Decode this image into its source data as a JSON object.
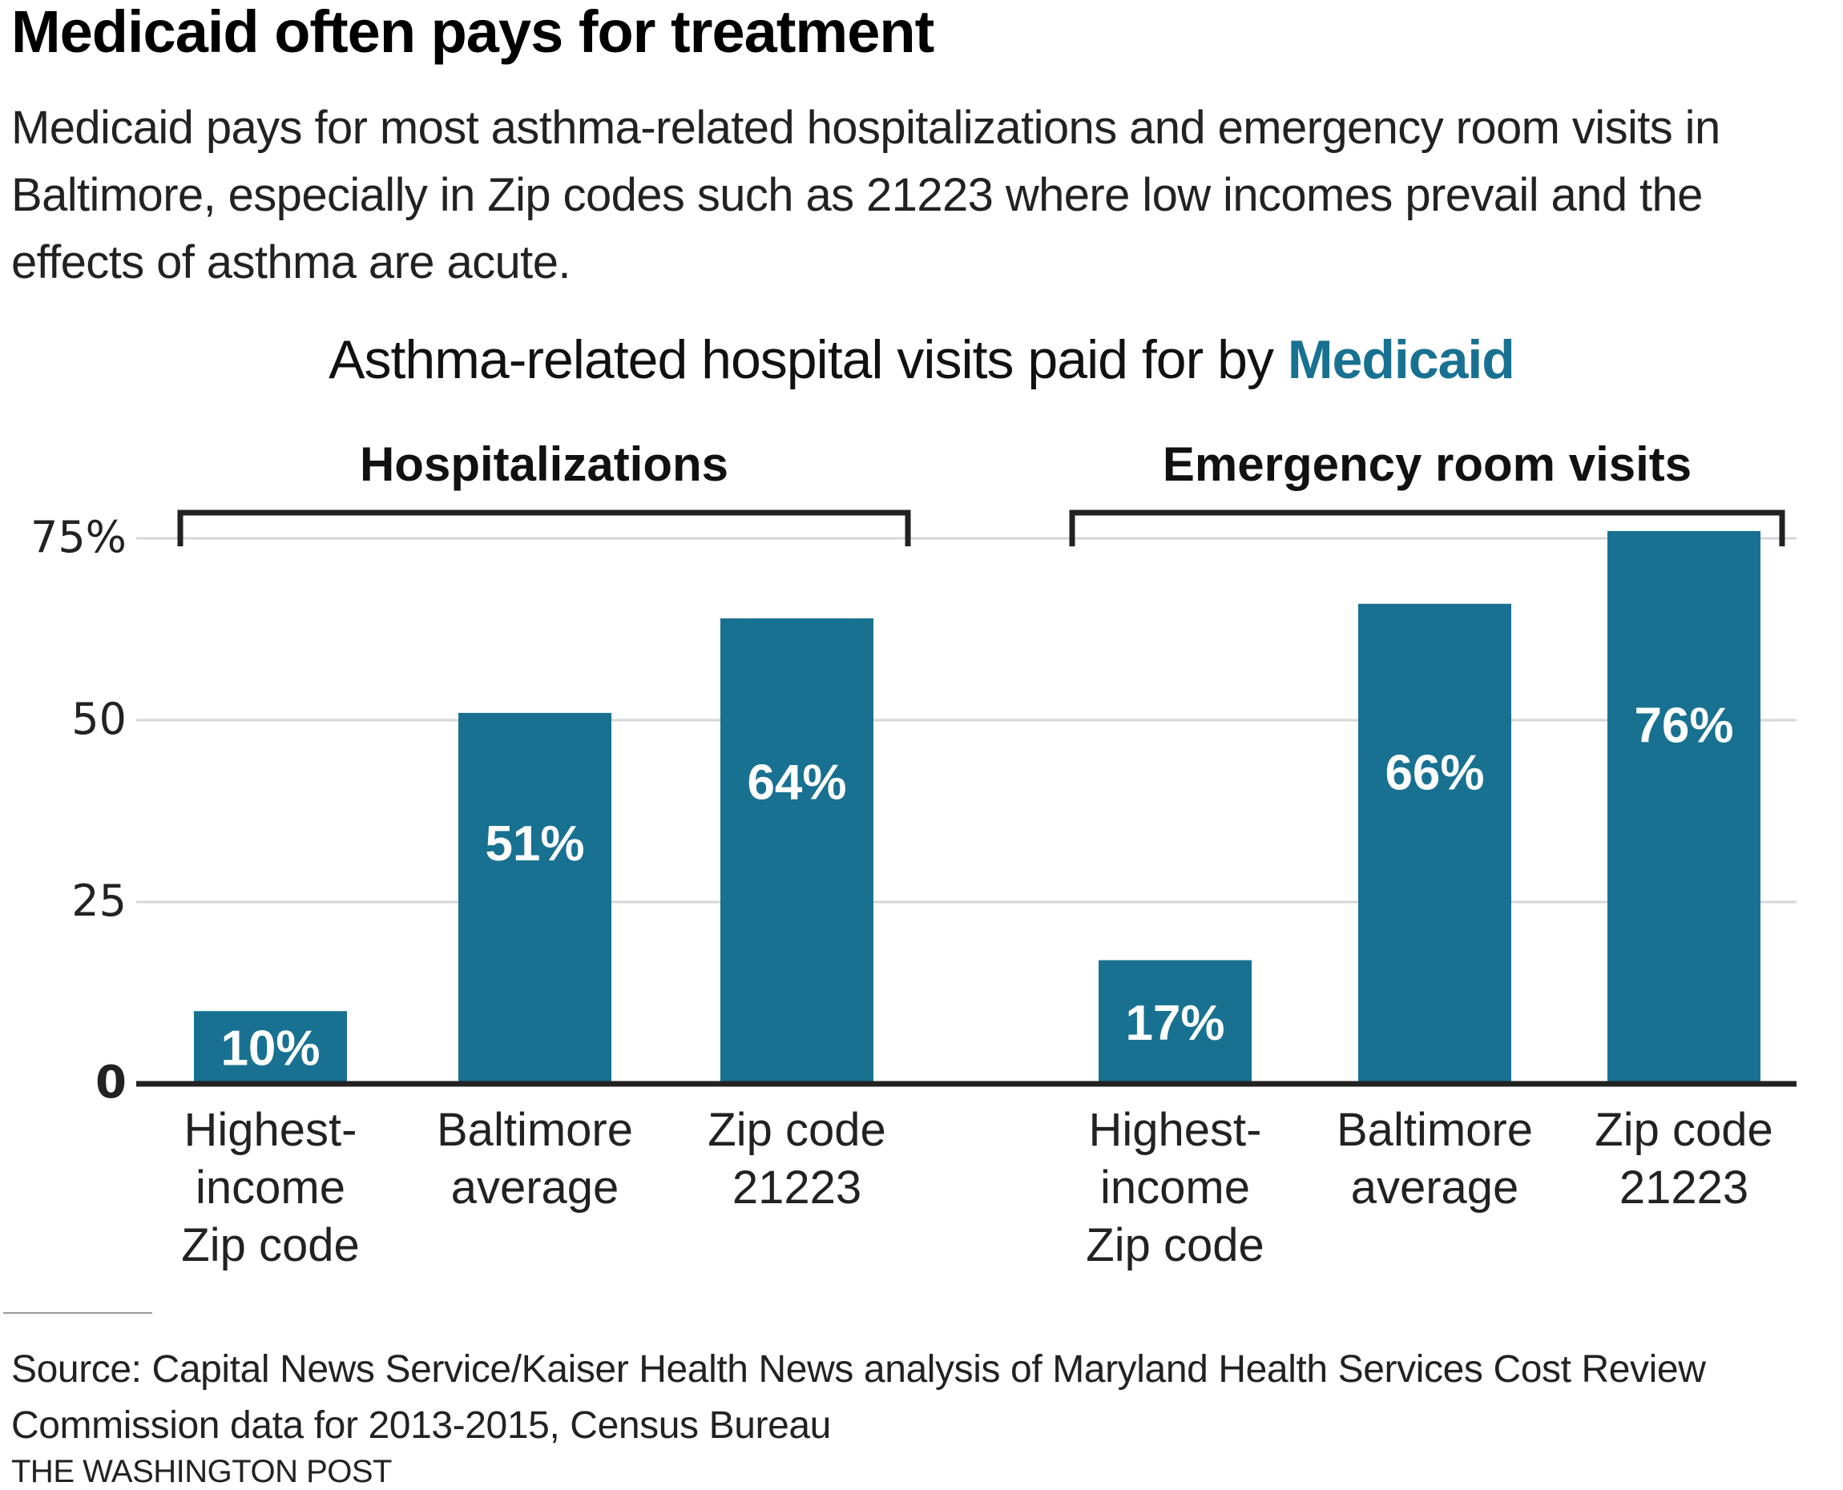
{
  "header": {
    "title": "Medicaid often pays for treatment",
    "subtitle": "Medicaid pays for most asthma-related hospitalizations and emergency room visits in Baltimore, especially in Zip codes such as 21223 where low incomes prevail and the effects of asthma are acute."
  },
  "chart_data": {
    "type": "bar",
    "title": "Asthma-related hospital visits paid for by",
    "title_accent": "Medicaid",
    "xlabel": "",
    "ylabel": "",
    "ylim": [
      0,
      75
    ],
    "yticks": [
      0,
      25,
      50,
      75
    ],
    "ytick_labels": [
      "0",
      "25",
      "50",
      "75%"
    ],
    "grid": true,
    "bar_color": "#187191",
    "groups": [
      {
        "name": "Hospitalizations",
        "categories": [
          "Highest-income Zip code",
          "Baltimore average",
          "Zip code 21223"
        ],
        "category_lines": [
          [
            "Highest-",
            "income",
            "Zip code"
          ],
          [
            "Baltimore",
            "average"
          ],
          [
            "Zip code",
            "21223"
          ]
        ],
        "values": [
          10,
          51,
          64
        ],
        "labels": [
          "10%",
          "51%",
          "64%"
        ]
      },
      {
        "name": "Emergency room visits",
        "categories": [
          "Highest-income Zip code",
          "Baltimore average",
          "Zip code 21223"
        ],
        "category_lines": [
          [
            "Highest-",
            "income",
            "Zip code"
          ],
          [
            "Baltimore",
            "average"
          ],
          [
            "Zip code",
            "21223"
          ]
        ],
        "values": [
          17,
          66,
          76
        ],
        "labels": [
          "17%",
          "66%",
          "76%"
        ]
      }
    ]
  },
  "footer": {
    "source": "Source: Capital News Service/Kaiser Health News analysis of Maryland Health Services Cost Review Commission data for 2013-2015, Census Bureau",
    "credit": "THE WASHINGTON POST"
  }
}
